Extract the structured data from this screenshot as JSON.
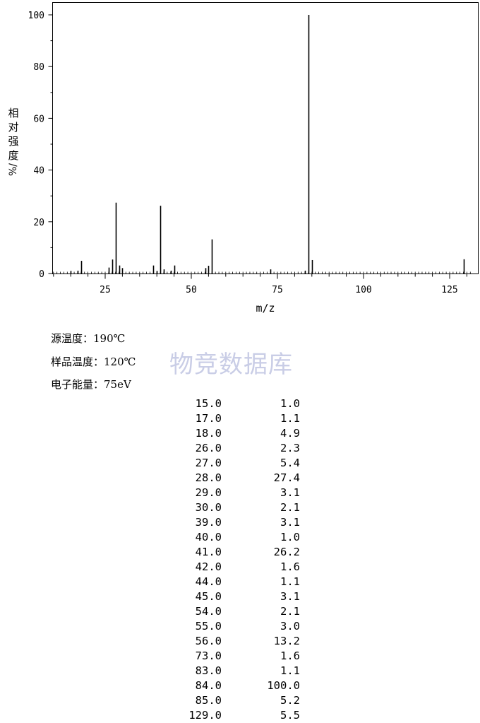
{
  "chart_data": {
    "type": "bar",
    "xlabel": "m/z",
    "ylabel": "相对强度/%",
    "xlim": [
      8,
      131
    ],
    "ylim": [
      0,
      104
    ],
    "xticks": [
      25,
      50,
      75,
      100,
      125
    ],
    "yticks": [
      0,
      20,
      40,
      60,
      80,
      100
    ],
    "grid": false,
    "x": [
      15.0,
      17.0,
      18.0,
      26.0,
      27.0,
      28.0,
      29.0,
      30.0,
      39.0,
      40.0,
      41.0,
      42.0,
      44.0,
      45.0,
      54.0,
      55.0,
      56.0,
      73.0,
      83.0,
      84.0,
      85.0,
      129.0
    ],
    "values": [
      1.0,
      1.1,
      4.9,
      2.3,
      5.4,
      27.4,
      3.1,
      2.1,
      3.1,
      1.0,
      26.2,
      1.6,
      1.1,
      3.1,
      2.1,
      3.0,
      13.2,
      1.6,
      1.1,
      100.0,
      5.2,
      5.5
    ]
  },
  "ylabel_chars": [
    "相",
    "对",
    "强",
    "度"
  ],
  "ylabel_unit": "%/",
  "info": {
    "source_temp": "源温度：190℃",
    "sample_temp": "样品温度：120℃",
    "electron_energy": "电子能量：75eV"
  },
  "watermark": "物竞数据库",
  "peak_table": [
    {
      "mz": "15.0",
      "intensity": "1.0"
    },
    {
      "mz": "17.0",
      "intensity": "1.1"
    },
    {
      "mz": "18.0",
      "intensity": "4.9"
    },
    {
      "mz": "26.0",
      "intensity": "2.3"
    },
    {
      "mz": "27.0",
      "intensity": "5.4"
    },
    {
      "mz": "28.0",
      "intensity": "27.4"
    },
    {
      "mz": "29.0",
      "intensity": "3.1"
    },
    {
      "mz": "30.0",
      "intensity": "2.1"
    },
    {
      "mz": "39.0",
      "intensity": "3.1"
    },
    {
      "mz": "40.0",
      "intensity": "1.0"
    },
    {
      "mz": "41.0",
      "intensity": "26.2"
    },
    {
      "mz": "42.0",
      "intensity": "1.6"
    },
    {
      "mz": "44.0",
      "intensity": "1.1"
    },
    {
      "mz": "45.0",
      "intensity": "3.1"
    },
    {
      "mz": "54.0",
      "intensity": "2.1"
    },
    {
      "mz": "55.0",
      "intensity": "3.0"
    },
    {
      "mz": "56.0",
      "intensity": "13.2"
    },
    {
      "mz": "73.0",
      "intensity": "1.6"
    },
    {
      "mz": "83.0",
      "intensity": "1.1"
    },
    {
      "mz": "84.0",
      "intensity": "100.0"
    },
    {
      "mz": "85.0",
      "intensity": "5.2"
    },
    {
      "mz": "129.0",
      "intensity": "5.5"
    }
  ]
}
